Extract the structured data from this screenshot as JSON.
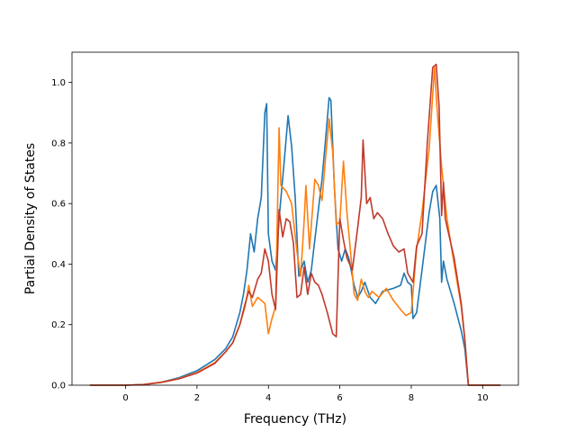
{
  "chart_data": {
    "type": "line",
    "xlabel": "Frequency (THz)",
    "ylabel": "Partial Density of States",
    "xlim": [
      -1.5,
      11
    ],
    "ylim": [
      0,
      1.1
    ],
    "xticks": [
      0,
      2,
      4,
      6,
      8,
      10
    ],
    "xtick_labels": [
      "0",
      "2",
      "4",
      "6",
      "8",
      "10"
    ],
    "yticks": [
      0,
      0.2,
      0.4,
      0.6,
      0.8,
      1.0
    ],
    "ytick_labels": [
      "0.0",
      "0.2",
      "0.4",
      "0.6",
      "0.8",
      "1.0"
    ],
    "grid": false,
    "series": [
      {
        "color": "#1f77b4",
        "points": [
          [
            -1,
            0
          ],
          [
            0,
            0
          ],
          [
            0.5,
            0.002
          ],
          [
            1,
            0.01
          ],
          [
            1.5,
            0.025
          ],
          [
            2,
            0.048
          ],
          [
            2.5,
            0.085
          ],
          [
            2.8,
            0.12
          ],
          [
            3,
            0.16
          ],
          [
            3.2,
            0.24
          ],
          [
            3.3,
            0.3
          ],
          [
            3.4,
            0.38
          ],
          [
            3.5,
            0.5
          ],
          [
            3.6,
            0.44
          ],
          [
            3.7,
            0.55
          ],
          [
            3.8,
            0.62
          ],
          [
            3.9,
            0.9
          ],
          [
            3.95,
            0.93
          ],
          [
            4,
            0.5
          ],
          [
            4.1,
            0.41
          ],
          [
            4.2,
            0.38
          ],
          [
            4.3,
            0.55
          ],
          [
            4.45,
            0.75
          ],
          [
            4.55,
            0.89
          ],
          [
            4.65,
            0.79
          ],
          [
            4.75,
            0.62
          ],
          [
            4.85,
            0.36
          ],
          [
            5,
            0.41
          ],
          [
            5.1,
            0.34
          ],
          [
            5.2,
            0.38
          ],
          [
            5.3,
            0.48
          ],
          [
            5.4,
            0.58
          ],
          [
            5.5,
            0.68
          ],
          [
            5.6,
            0.81
          ],
          [
            5.7,
            0.95
          ],
          [
            5.75,
            0.94
          ],
          [
            5.85,
            0.65
          ],
          [
            5.95,
            0.45
          ],
          [
            6.05,
            0.41
          ],
          [
            6.15,
            0.45
          ],
          [
            6.25,
            0.42
          ],
          [
            6.4,
            0.33
          ],
          [
            6.5,
            0.29
          ],
          [
            6.6,
            0.31
          ],
          [
            6.7,
            0.34
          ],
          [
            6.85,
            0.29
          ],
          [
            7,
            0.27
          ],
          [
            7.2,
            0.31
          ],
          [
            7.5,
            0.32
          ],
          [
            7.7,
            0.33
          ],
          [
            7.8,
            0.37
          ],
          [
            7.9,
            0.34
          ],
          [
            8,
            0.33
          ],
          [
            8.05,
            0.22
          ],
          [
            8.15,
            0.24
          ],
          [
            8.3,
            0.38
          ],
          [
            8.5,
            0.57
          ],
          [
            8.6,
            0.64
          ],
          [
            8.7,
            0.66
          ],
          [
            8.8,
            0.55
          ],
          [
            8.85,
            0.34
          ],
          [
            8.9,
            0.41
          ],
          [
            9.0,
            0.35
          ],
          [
            9.2,
            0.27
          ],
          [
            9.4,
            0.18
          ],
          [
            9.5,
            0.12
          ],
          [
            9.6,
            0
          ],
          [
            10.5,
            0
          ]
        ]
      },
      {
        "color": "#ff7f0e",
        "points": [
          [
            -1,
            0
          ],
          [
            0,
            0
          ],
          [
            0.5,
            0.002
          ],
          [
            1,
            0.01
          ],
          [
            1.5,
            0.022
          ],
          [
            2,
            0.042
          ],
          [
            2.5,
            0.075
          ],
          [
            2.8,
            0.11
          ],
          [
            3,
            0.14
          ],
          [
            3.2,
            0.2
          ],
          [
            3.35,
            0.26
          ],
          [
            3.45,
            0.33
          ],
          [
            3.55,
            0.26
          ],
          [
            3.7,
            0.29
          ],
          [
            3.8,
            0.28
          ],
          [
            3.9,
            0.27
          ],
          [
            4,
            0.17
          ],
          [
            4.1,
            0.22
          ],
          [
            4.2,
            0.26
          ],
          [
            4.3,
            0.85
          ],
          [
            4.35,
            0.66
          ],
          [
            4.5,
            0.64
          ],
          [
            4.65,
            0.6
          ],
          [
            4.8,
            0.44
          ],
          [
            4.9,
            0.36
          ],
          [
            5,
            0.54
          ],
          [
            5.05,
            0.66
          ],
          [
            5.15,
            0.45
          ],
          [
            5.3,
            0.68
          ],
          [
            5.4,
            0.66
          ],
          [
            5.5,
            0.61
          ],
          [
            5.6,
            0.75
          ],
          [
            5.7,
            0.88
          ],
          [
            5.8,
            0.77
          ],
          [
            5.9,
            0.53
          ],
          [
            6.0,
            0.54
          ],
          [
            6.1,
            0.74
          ],
          [
            6.2,
            0.57
          ],
          [
            6.3,
            0.44
          ],
          [
            6.4,
            0.3
          ],
          [
            6.5,
            0.28
          ],
          [
            6.6,
            0.35
          ],
          [
            6.7,
            0.31
          ],
          [
            6.8,
            0.29
          ],
          [
            6.9,
            0.31
          ],
          [
            7.1,
            0.29
          ],
          [
            7.3,
            0.32
          ],
          [
            7.5,
            0.28
          ],
          [
            7.7,
            0.25
          ],
          [
            7.85,
            0.23
          ],
          [
            8.0,
            0.24
          ],
          [
            8.15,
            0.45
          ],
          [
            8.3,
            0.57
          ],
          [
            8.5,
            0.78
          ],
          [
            8.65,
            1.05
          ],
          [
            8.72,
            0.92
          ],
          [
            8.85,
            0.72
          ],
          [
            9.0,
            0.55
          ],
          [
            9.2,
            0.4
          ],
          [
            9.4,
            0.26
          ],
          [
            9.5,
            0.15
          ],
          [
            9.6,
            0
          ],
          [
            10.5,
            0
          ]
        ]
      },
      {
        "color": "#c0392b",
        "points": [
          [
            -1,
            0
          ],
          [
            0,
            0
          ],
          [
            0.5,
            0.002
          ],
          [
            1,
            0.009
          ],
          [
            1.5,
            0.021
          ],
          [
            2,
            0.04
          ],
          [
            2.5,
            0.072
          ],
          [
            2.8,
            0.11
          ],
          [
            3,
            0.14
          ],
          [
            3.2,
            0.2
          ],
          [
            3.35,
            0.27
          ],
          [
            3.45,
            0.31
          ],
          [
            3.55,
            0.29
          ],
          [
            3.7,
            0.35
          ],
          [
            3.8,
            0.37
          ],
          [
            3.9,
            0.45
          ],
          [
            4,
            0.41
          ],
          [
            4.1,
            0.3
          ],
          [
            4.2,
            0.25
          ],
          [
            4.3,
            0.58
          ],
          [
            4.4,
            0.49
          ],
          [
            4.5,
            0.55
          ],
          [
            4.6,
            0.54
          ],
          [
            4.7,
            0.47
          ],
          [
            4.8,
            0.29
          ],
          [
            4.9,
            0.3
          ],
          [
            5.0,
            0.39
          ],
          [
            5.1,
            0.3
          ],
          [
            5.2,
            0.37
          ],
          [
            5.3,
            0.34
          ],
          [
            5.4,
            0.33
          ],
          [
            5.5,
            0.3
          ],
          [
            5.65,
            0.24
          ],
          [
            5.8,
            0.17
          ],
          [
            5.9,
            0.16
          ],
          [
            6.0,
            0.55
          ],
          [
            6.1,
            0.48
          ],
          [
            6.2,
            0.42
          ],
          [
            6.35,
            0.38
          ],
          [
            6.5,
            0.52
          ],
          [
            6.6,
            0.62
          ],
          [
            6.65,
            0.81
          ],
          [
            6.75,
            0.6
          ],
          [
            6.85,
            0.62
          ],
          [
            6.95,
            0.55
          ],
          [
            7.05,
            0.57
          ],
          [
            7.2,
            0.55
          ],
          [
            7.35,
            0.5
          ],
          [
            7.5,
            0.46
          ],
          [
            7.65,
            0.44
          ],
          [
            7.8,
            0.45
          ],
          [
            7.9,
            0.37
          ],
          [
            8.05,
            0.34
          ],
          [
            8.15,
            0.46
          ],
          [
            8.3,
            0.5
          ],
          [
            8.45,
            0.8
          ],
          [
            8.6,
            1.05
          ],
          [
            8.7,
            1.06
          ],
          [
            8.78,
            0.92
          ],
          [
            8.85,
            0.56
          ],
          [
            8.9,
            0.67
          ],
          [
            8.95,
            0.55
          ],
          [
            9.2,
            0.42
          ],
          [
            9.4,
            0.27
          ],
          [
            9.5,
            0.15
          ],
          [
            9.6,
            0
          ],
          [
            10.5,
            0
          ]
        ]
      }
    ]
  }
}
